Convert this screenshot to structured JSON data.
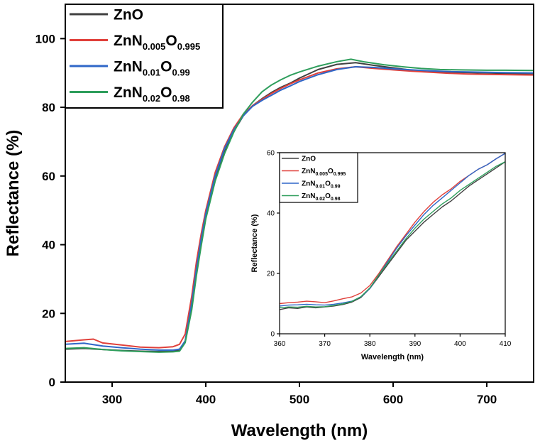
{
  "chart_data": [
    {
      "type": "line",
      "role": "main",
      "xlabel": "Wavelength (nm)",
      "ylabel": "Reflectance (%)",
      "xlim": [
        250,
        750
      ],
      "ylim": [
        0,
        110
      ],
      "xticks": [
        300,
        400,
        500,
        600,
        700
      ],
      "yticks": [
        0,
        20,
        40,
        60,
        80,
        100
      ],
      "legend_position": "top-left",
      "grid": false,
      "series": [
        {
          "name": "ZnO",
          "legend": {
            "base": "ZnO",
            "parts": []
          },
          "color": "#404040",
          "x": [
            250,
            270,
            290,
            310,
            330,
            350,
            365,
            372,
            378,
            385,
            390,
            395,
            400,
            410,
            420,
            430,
            440,
            450,
            460,
            470,
            480,
            490,
            500,
            520,
            540,
            560,
            580,
            600,
            620,
            640,
            660,
            680,
            700,
            720,
            750
          ],
          "y": [
            9.6,
            9.8,
            9.5,
            9.2,
            9.0,
            8.9,
            9.0,
            9.2,
            12,
            22,
            32,
            40,
            48,
            59,
            67,
            73,
            77.5,
            80.5,
            82.5,
            84.3,
            85.8,
            87,
            88.5,
            91,
            92.5,
            93,
            92.2,
            91.5,
            90.8,
            90.5,
            90.2,
            90.1,
            90.0,
            89.9,
            89.8
          ]
        },
        {
          "name": "ZnN0.005O0.995",
          "legend": {
            "base": "ZnN",
            "parts": [
              {
                "sub": "0.005",
                "text": "O"
              },
              {
                "sub": "0.995",
                "text": ""
              }
            ]
          },
          "color": "#e0403a",
          "x": [
            250,
            270,
            280,
            290,
            310,
            330,
            350,
            365,
            372,
            378,
            385,
            390,
            395,
            400,
            410,
            420,
            430,
            440,
            450,
            460,
            470,
            480,
            490,
            500,
            520,
            540,
            560,
            580,
            600,
            620,
            640,
            660,
            680,
            700,
            720,
            750
          ],
          "y": [
            11.8,
            12.3,
            12.5,
            11.4,
            10.8,
            10.2,
            10.0,
            10.3,
            11.0,
            14,
            25,
            35,
            43,
            50,
            61,
            68.5,
            74,
            78,
            80.5,
            82.3,
            84,
            85.5,
            86.8,
            88,
            90,
            91.2,
            91.8,
            91.3,
            90.9,
            90.5,
            90.2,
            89.9,
            89.7,
            89.6,
            89.5,
            89.4
          ]
        },
        {
          "name": "ZnN0.01O0.99",
          "legend": {
            "base": "ZnN",
            "parts": [
              {
                "sub": "0.01",
                "text": "O"
              },
              {
                "sub": "0.99",
                "text": ""
              }
            ]
          },
          "color": "#2f67c8",
          "x": [
            250,
            270,
            290,
            310,
            330,
            350,
            365,
            372,
            378,
            385,
            390,
            395,
            400,
            410,
            420,
            430,
            440,
            450,
            460,
            470,
            480,
            490,
            500,
            520,
            540,
            560,
            580,
            600,
            620,
            640,
            660,
            680,
            700,
            720,
            750
          ],
          "y": [
            11.0,
            11.3,
            10.5,
            10.0,
            9.6,
            9.3,
            9.3,
            9.6,
            12,
            23,
            33,
            41.5,
            49,
            60,
            68,
            73.5,
            77.5,
            80.3,
            82,
            83.5,
            85,
            86.2,
            87.5,
            89.5,
            91,
            91.8,
            91.6,
            91.2,
            90.9,
            90.6,
            90.4,
            90.3,
            90.2,
            90.1,
            90.0
          ]
        },
        {
          "name": "ZnN0.02O0.98",
          "legend": {
            "base": "ZnN",
            "parts": [
              {
                "sub": "0.02",
                "text": "O"
              },
              {
                "sub": "0.98",
                "text": ""
              }
            ]
          },
          "color": "#2e9e5c",
          "x": [
            250,
            270,
            290,
            310,
            330,
            350,
            365,
            372,
            378,
            385,
            390,
            395,
            400,
            410,
            420,
            430,
            440,
            450,
            460,
            470,
            480,
            490,
            500,
            520,
            540,
            555,
            570,
            590,
            610,
            630,
            650,
            670,
            700,
            720,
            750
          ],
          "y": [
            9.8,
            10.0,
            9.5,
            9.1,
            8.9,
            8.7,
            8.8,
            9.0,
            11.5,
            21,
            31,
            39.5,
            47.5,
            58.5,
            66.5,
            72.8,
            78,
            81.5,
            84.5,
            86.5,
            88,
            89.3,
            90.3,
            92,
            93.3,
            94,
            93.2,
            92.4,
            91.8,
            91.3,
            91.0,
            90.9,
            90.8,
            90.8,
            90.7
          ]
        }
      ]
    },
    {
      "type": "line",
      "role": "inset",
      "xlabel": "Wavelength (nm)",
      "ylabel": "Reflectance (%)",
      "xlim": [
        360,
        410
      ],
      "ylim": [
        0,
        60
      ],
      "xticks": [
        360,
        370,
        380,
        390,
        400,
        410
      ],
      "yticks": [
        0,
        20,
        40,
        60
      ],
      "legend_position": "top-left",
      "grid": false,
      "series": [
        {
          "name": "ZnO",
          "legend": {
            "base": "ZnO",
            "parts": []
          },
          "color": "#404040",
          "x": [
            360,
            362,
            364,
            366,
            368,
            370,
            372,
            374,
            376,
            378,
            380,
            382,
            384,
            386,
            388,
            390,
            392,
            394,
            396,
            398,
            400,
            402,
            404,
            406,
            408,
            410
          ],
          "y": [
            8,
            8.6,
            8.4,
            8.9,
            8.6,
            8.9,
            9.2,
            9.7,
            10.5,
            12,
            15,
            19,
            23,
            27,
            31,
            34,
            37,
            39.5,
            42,
            44,
            46.5,
            49,
            51,
            53,
            55,
            57
          ]
        },
        {
          "name": "ZnN0.005O0.995",
          "legend": {
            "base": "ZnN",
            "parts": [
              {
                "sub": "0.005",
                "text": "O"
              },
              {
                "sub": "0.995",
                "text": ""
              }
            ]
          },
          "color": "#e0403a",
          "x": [
            360,
            362,
            364,
            366,
            368,
            370,
            372,
            374,
            376,
            378,
            380,
            382,
            384,
            386,
            388,
            390,
            392,
            394,
            396,
            398,
            400,
            402,
            404,
            406,
            408,
            410
          ],
          "y": [
            10,
            10.3,
            10.5,
            10.8,
            10.6,
            10.3,
            10.9,
            11.6,
            12.2,
            13.5,
            16,
            20,
            24.5,
            29,
            33,
            37,
            40.5,
            43.5,
            46,
            48,
            50.5,
            52.5,
            54.5,
            56,
            58,
            59.8
          ]
        },
        {
          "name": "ZnN0.01O0.99",
          "legend": {
            "base": "ZnN",
            "parts": [
              {
                "sub": "0.01",
                "text": "O"
              },
              {
                "sub": "0.99",
                "text": ""
              }
            ]
          },
          "color": "#2f67c8",
          "x": [
            360,
            362,
            364,
            366,
            368,
            370,
            372,
            374,
            376,
            378,
            380,
            382,
            384,
            386,
            388,
            390,
            392,
            394,
            396,
            398,
            400,
            402,
            404,
            406,
            408,
            410
          ],
          "y": [
            9.2,
            9.5,
            9.6,
            9.8,
            9.6,
            9.5,
            9.8,
            10.2,
            10.8,
            12.2,
            15,
            19.5,
            24,
            28.5,
            32.5,
            36,
            39.5,
            42.5,
            45,
            47.5,
            50,
            52.5,
            54.5,
            56,
            58,
            59.8
          ]
        },
        {
          "name": "ZnN0.02O0.98",
          "legend": {
            "base": "ZnN",
            "parts": [
              {
                "sub": "0.02",
                "text": "O"
              },
              {
                "sub": "0.98",
                "text": ""
              }
            ]
          },
          "color": "#2e9e5c",
          "x": [
            360,
            362,
            364,
            366,
            368,
            370,
            372,
            374,
            376,
            378,
            380,
            382,
            384,
            386,
            388,
            390,
            392,
            394,
            396,
            398,
            400,
            402,
            404,
            406,
            408,
            410
          ],
          "y": [
            8.6,
            8.9,
            8.8,
            9.1,
            8.9,
            9.0,
            9.4,
            9.9,
            10.7,
            12.3,
            15.2,
            19.5,
            23.5,
            27.5,
            31.5,
            35,
            38,
            40.5,
            43,
            45,
            47.5,
            49.5,
            51.5,
            53.5,
            55.5,
            57
          ]
        }
      ]
    }
  ]
}
